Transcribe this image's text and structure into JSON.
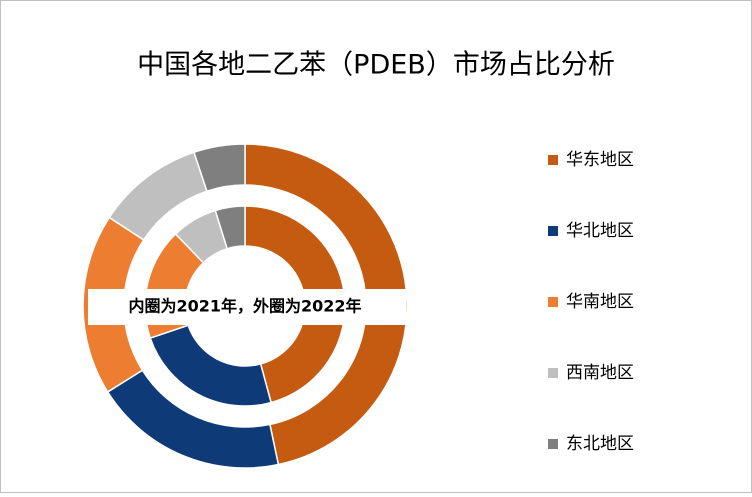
{
  "chart_data": {
    "type": "pie",
    "title": "中国各地二乙苯（PDEB）市场占比分析",
    "annotation": "内圈为2021年，外圈为2022年",
    "categories": [
      "华东地区",
      "华北地区",
      "华南地区",
      "西南地区",
      "东北地区"
    ],
    "colors": [
      "#c55a11",
      "#0e3a78",
      "#ed7d31",
      "#bfbfbf",
      "#7f7f7f"
    ],
    "rings": [
      {
        "values": [
          45.8,
          24,
          18,
          7.4,
          4.8
        ]
      },
      {
        "values": [
          46.7,
          19.4,
          18.1,
          10.7,
          5.1
        ]
      }
    ]
  }
}
